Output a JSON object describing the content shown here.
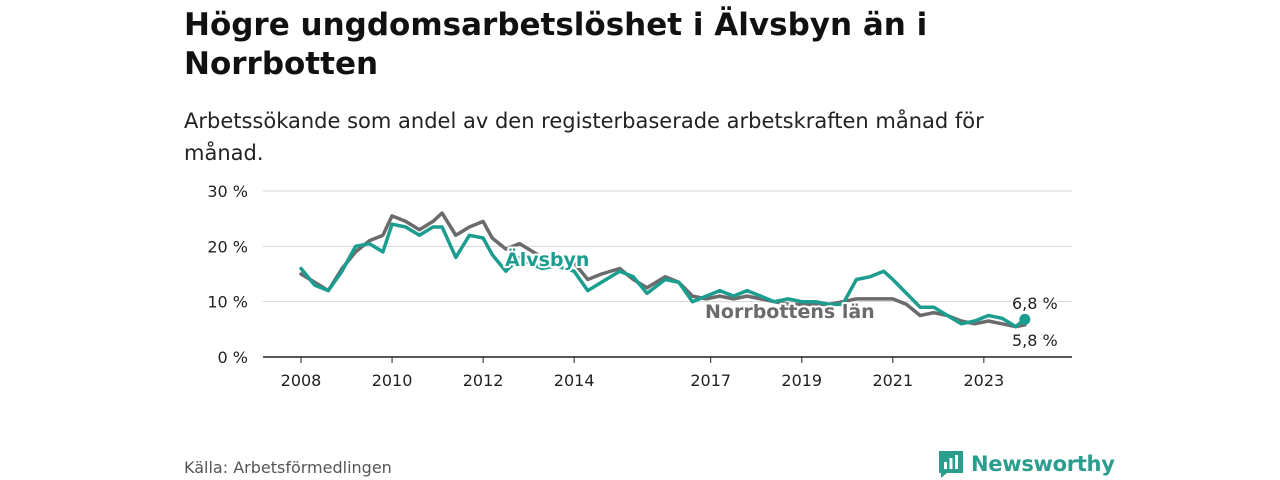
{
  "title": "Högre ungdomsarbetslöshet i Älvsbyn än i Norrbotten",
  "subtitle": "Arbetssökande som andel av den registerbaserade arbetskraften månad för månad.",
  "source": "Källa: Arbetsförmedlingen",
  "brand": "Newsworthy",
  "colors": {
    "alvsbyn": "#1b9e8f",
    "norrbotten": "#6b6b6e",
    "grid": "#d4d4d4",
    "axis": "#222222",
    "brand": "#2a9d8f"
  },
  "chart_data": {
    "type": "line",
    "ylim": [
      0,
      30
    ],
    "xlim": [
      2007.75,
      2024.4
    ],
    "y_ticks": [
      0,
      10,
      20,
      30
    ],
    "y_tick_labels": [
      "0 %",
      "10 %",
      "20 %",
      "30 %"
    ],
    "x_ticks": [
      2008,
      2010,
      2012,
      2014,
      2017,
      2019,
      2021,
      2023
    ],
    "x_tick_labels": [
      "2008",
      "2010",
      "2012",
      "2014",
      "2017",
      "2019",
      "2021",
      "2023"
    ],
    "series": [
      {
        "name": "Norrbottens län",
        "label": "Norrbottens län",
        "end_label": "5,8 %",
        "x": [
          2008.0,
          2008.3,
          2008.6,
          2008.9,
          2009.2,
          2009.5,
          2009.8,
          2010.0,
          2010.3,
          2010.6,
          2010.9,
          2011.1,
          2011.4,
          2011.7,
          2012.0,
          2012.2,
          2012.5,
          2012.8,
          2013.0,
          2013.3,
          2013.6,
          2014.0,
          2014.3,
          2014.6,
          2015.0,
          2015.3,
          2015.6,
          2016.0,
          2016.3,
          2016.6,
          2016.9,
          2017.2,
          2017.5,
          2017.8,
          2018.1,
          2018.4,
          2018.7,
          2019.0,
          2019.3,
          2019.6,
          2019.9,
          2020.2,
          2020.5,
          2020.8,
          2021.0,
          2021.3,
          2021.6,
          2021.9,
          2022.2,
          2022.5,
          2022.8,
          2023.1,
          2023.4,
          2023.7,
          2023.9
        ],
        "values": [
          15,
          13.5,
          12,
          16,
          19,
          21,
          22,
          25.5,
          24.5,
          23,
          24.5,
          26,
          22,
          23.5,
          24.5,
          21.5,
          19.5,
          20.5,
          19.5,
          18,
          17.5,
          17,
          14,
          15,
          16,
          14,
          12.5,
          14.5,
          13.5,
          11,
          10.5,
          11,
          10.5,
          11,
          10.5,
          10,
          9.5,
          9.5,
          9.5,
          9.5,
          10,
          10.5,
          10.5,
          10.5,
          10.5,
          9.5,
          7.5,
          8,
          7.5,
          6.5,
          6,
          6.5,
          6,
          5.5,
          5.8
        ]
      },
      {
        "name": "Älvsbyn",
        "label": "Älvsbyn",
        "end_label": "6,8 %",
        "x": [
          2008.0,
          2008.3,
          2008.6,
          2008.9,
          2009.2,
          2009.5,
          2009.8,
          2010.0,
          2010.3,
          2010.6,
          2010.9,
          2011.1,
          2011.4,
          2011.7,
          2012.0,
          2012.2,
          2012.5,
          2012.8,
          2013.0,
          2013.3,
          2013.6,
          2014.0,
          2014.3,
          2014.6,
          2015.0,
          2015.3,
          2015.6,
          2016.0,
          2016.3,
          2016.6,
          2016.9,
          2017.2,
          2017.5,
          2017.8,
          2018.1,
          2018.4,
          2018.7,
          2019.0,
          2019.3,
          2019.6,
          2019.9,
          2020.2,
          2020.5,
          2020.8,
          2021.0,
          2021.3,
          2021.6,
          2021.9,
          2022.2,
          2022.5,
          2022.8,
          2023.1,
          2023.4,
          2023.7,
          2023.9
        ],
        "values": [
          16,
          13,
          12,
          15.5,
          20,
          20.5,
          19,
          24,
          23.5,
          22,
          23.5,
          23.5,
          18,
          22,
          21.5,
          18.5,
          15.5,
          18,
          17,
          16,
          16.5,
          15.5,
          12,
          13.5,
          15.5,
          14.5,
          11.5,
          14,
          13.5,
          10,
          11,
          12,
          11,
          12,
          11,
          10,
          10.5,
          10,
          10,
          9.5,
          9.5,
          14,
          14.5,
          15.5,
          14,
          11.5,
          9,
          9,
          7.5,
          6,
          6.5,
          7.5,
          7,
          5.5,
          6.8
        ]
      }
    ]
  }
}
